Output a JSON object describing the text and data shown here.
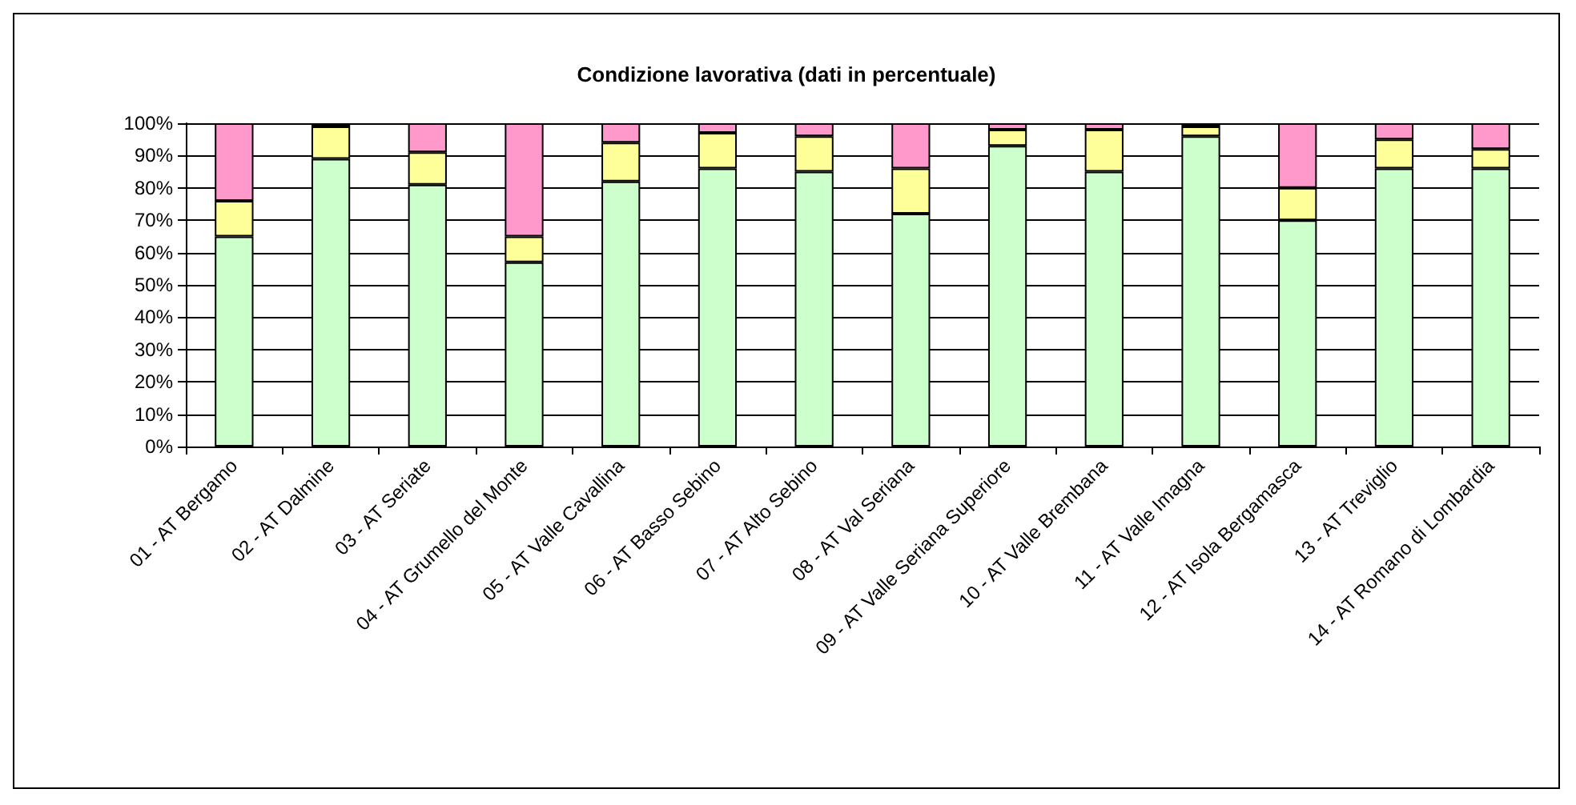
{
  "chart_data": {
    "type": "bar",
    "title": "Condizione lavorativa (dati in percentuale)",
    "stacked": true,
    "grid": "y",
    "categories": [
      "01 - AT Bergamo",
      "02 - AT Dalmine",
      "03 - AT Seriate",
      "04 - AT Grumello del Monte",
      "05 - AT Valle Cavallina",
      "06 - AT Basso Sebino",
      "07 - AT Alto Sebino",
      "08 - AT Val Seriana",
      "09 - AT Valle Seriana Superiore",
      "10 - AT Valle Brembana",
      "11 - AT Valle Imagna",
      "12 - AT Isola Bergamasca",
      "13 - AT Treviglio",
      "14 - AT Romano di Lombardia"
    ],
    "series": [
      {
        "color": "#ccffcc",
        "values": [
          65,
          89,
          81,
          57,
          82,
          86,
          85,
          72,
          93,
          85,
          96,
          70,
          86,
          86
        ]
      },
      {
        "color": "#ffff99",
        "values": [
          11,
          10,
          10,
          8,
          12,
          11,
          11,
          14,
          5,
          13,
          3,
          10,
          9,
          6
        ]
      },
      {
        "color": "#ff99cc",
        "values": [
          24,
          1,
          9,
          35,
          6,
          3,
          4,
          14,
          2,
          2,
          1,
          20,
          5,
          8
        ]
      }
    ],
    "ylim": [
      0,
      100
    ],
    "yticks": [
      {
        "value": 0,
        "label": "0%"
      },
      {
        "value": 10,
        "label": "10%"
      },
      {
        "value": 20,
        "label": "20%"
      },
      {
        "value": 30,
        "label": "30%"
      },
      {
        "value": 40,
        "label": "40%"
      },
      {
        "value": 50,
        "label": "50%"
      },
      {
        "value": 60,
        "label": "60%"
      },
      {
        "value": 70,
        "label": "70%"
      },
      {
        "value": 80,
        "label": "80%"
      },
      {
        "value": 90,
        "label": "90%"
      },
      {
        "value": 100,
        "label": "100%"
      }
    ]
  }
}
